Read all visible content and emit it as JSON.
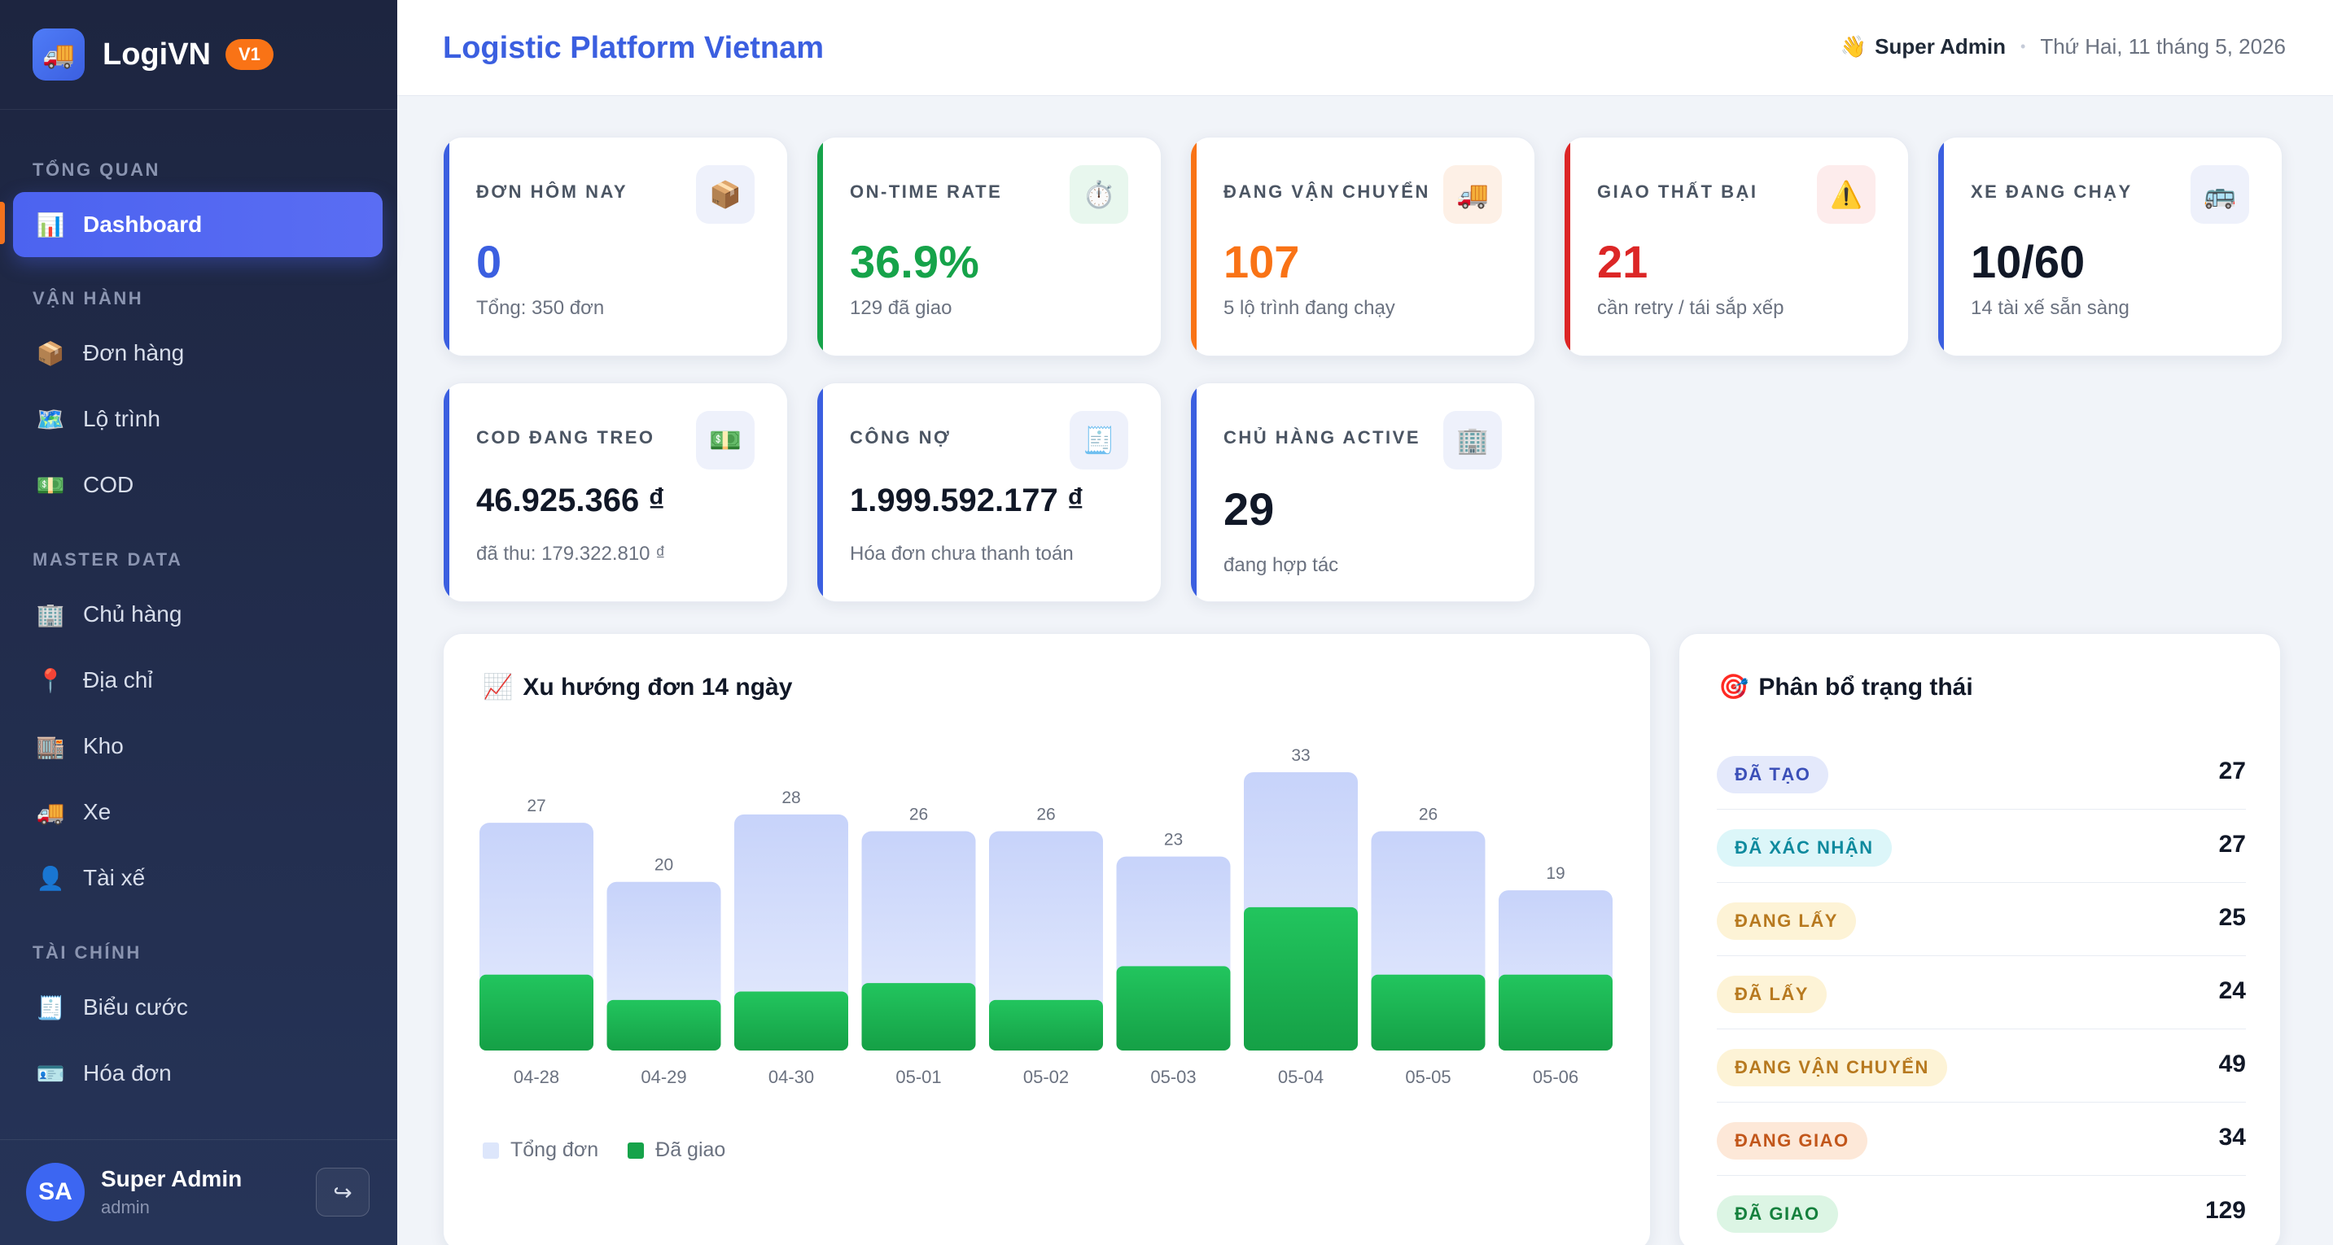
{
  "app": {
    "logo_icon": "truck-icon",
    "name": "LogiVN",
    "version": "V1"
  },
  "sidebar": {
    "sections": [
      {
        "title": "TỔNG QUAN",
        "items": [
          {
            "label": "Dashboard",
            "icon": "bar-chart-icon",
            "glyph": "📊",
            "active": true
          }
        ]
      },
      {
        "title": "VẬN HÀNH",
        "items": [
          {
            "label": "Đơn hàng",
            "icon": "package-icon",
            "glyph": "📦"
          },
          {
            "label": "Lộ trình",
            "icon": "map-icon",
            "glyph": "🗺️"
          },
          {
            "label": "COD",
            "icon": "cash-icon",
            "glyph": "💵"
          }
        ]
      },
      {
        "title": "MASTER DATA",
        "items": [
          {
            "label": "Chủ hàng",
            "icon": "building-icon",
            "glyph": "🏢"
          },
          {
            "label": "Địa chỉ",
            "icon": "pin-icon",
            "glyph": "📍"
          },
          {
            "label": "Kho",
            "icon": "warehouse-icon",
            "glyph": "🏬"
          },
          {
            "label": "Xe",
            "icon": "truck-icon",
            "glyph": "🚚"
          },
          {
            "label": "Tài xế",
            "icon": "person-icon",
            "glyph": "👤"
          }
        ]
      },
      {
        "title": "TÀI CHÍNH",
        "items": [
          {
            "label": "Biểu cước",
            "icon": "receipt-icon",
            "glyph": "🧾"
          },
          {
            "label": "Hóa đơn",
            "icon": "id-card-icon",
            "glyph": "🪪"
          }
        ]
      }
    ],
    "user": {
      "initials": "SA",
      "name": "Super Admin",
      "role": "admin",
      "logout_icon": "logout-icon",
      "logout_glyph": "↪"
    }
  },
  "header": {
    "title": "Logistic Platform Vietnam",
    "user_icon": "wave-icon",
    "user_glyph": "👋",
    "user_name": "Super Admin",
    "separator": "•",
    "date": "Thứ Hai, 11 tháng 5, 2026"
  },
  "stats": [
    {
      "label": "ĐƠN HÔM NAY",
      "value": "0",
      "sub": "Tổng: 350 đơn",
      "accent": "#3b5fe0",
      "value_color": "#3b5fe0",
      "icon": "package-icon",
      "glyph": "📦",
      "icon_bg": "#eef1fb"
    },
    {
      "label": "ON-TIME RATE",
      "value": "36.9%",
      "sub": "129 đã giao",
      "accent": "#16a34a",
      "value_color": "#16a34a",
      "icon": "stopwatch-icon",
      "glyph": "⏱️",
      "icon_bg": "#e8f7ee"
    },
    {
      "label": "ĐANG VẬN CHUYỂN",
      "value": "107",
      "sub": "5 lộ trình đang chạy",
      "accent": "#f97316",
      "value_color": "#f97316",
      "icon": "truck-icon",
      "glyph": "🚚",
      "icon_bg": "#fdf0e6"
    },
    {
      "label": "GIAO THẤT BẠI",
      "value": "21",
      "sub": "cần retry / tái sắp xếp",
      "accent": "#dc2626",
      "value_color": "#dc2626",
      "icon": "warning-icon",
      "glyph": "⚠️",
      "icon_bg": "#fdecec"
    },
    {
      "label": "XE ĐANG CHẠY",
      "value": "10/60",
      "sub": "14 tài xế sẵn sàng",
      "accent": "#3b5fe0",
      "value_color": "#111827",
      "icon": "bus-icon",
      "glyph": "🚌",
      "icon_bg": "#eef1fb"
    },
    {
      "label": "COD ĐANG TREO",
      "value": "46.925.366 ₫",
      "sub": "đã thu: 179.322.810 ₫",
      "accent": "#3b5fe0",
      "value_color": "#111827",
      "icon": "cash-icon",
      "glyph": "💵",
      "icon_bg": "#eef1fb"
    },
    {
      "label": "CÔNG NỢ",
      "value": "1.999.592.177 ₫",
      "sub": "Hóa đơn chưa thanh toán",
      "accent": "#3b5fe0",
      "value_color": "#111827",
      "icon": "receipt-icon",
      "glyph": "🧾",
      "icon_bg": "#eef1fb"
    },
    {
      "label": "CHỦ HÀNG ACTIVE",
      "value": "29",
      "sub": "đang hợp tác",
      "accent": "#3b5fe0",
      "value_color": "#111827",
      "icon": "building-icon",
      "glyph": "🏢",
      "icon_bg": "#eef1fb"
    }
  ],
  "trend": {
    "title": "Xu hướng đơn 14 ngày",
    "icon": "trend-icon",
    "glyph": "📈"
  },
  "chart_data": {
    "type": "bar",
    "categories": [
      "04-28",
      "04-29",
      "04-30",
      "05-01",
      "05-02",
      "05-03",
      "05-04",
      "05-05",
      "05-06"
    ],
    "series": [
      {
        "name": "Tổng đơn",
        "values": [
          27,
          20,
          28,
          26,
          26,
          23,
          33,
          26,
          19
        ],
        "color": "#cdd8fa"
      },
      {
        "name": "Đã giao",
        "values": [
          9,
          6,
          7,
          8,
          6,
          10,
          17,
          9,
          9
        ],
        "color": "#16a34a"
      }
    ],
    "ylim": [
      0,
      33
    ],
    "grid": false,
    "legend": "bottom-left",
    "data_labels": "Tổng đơn"
  },
  "status_panel": {
    "title": "Phân bổ trạng thái",
    "icon": "target-icon",
    "glyph": "🎯",
    "items": [
      {
        "label": "ĐÃ TẠO",
        "count": "27",
        "fg": "#3b4fb8",
        "bg": "#e4e9fb"
      },
      {
        "label": "ĐÃ XÁC NHẬN",
        "count": "27",
        "fg": "#0e8a9e",
        "bg": "#dcf6f9"
      },
      {
        "label": "ĐANG LẤY",
        "count": "25",
        "fg": "#b7791f",
        "bg": "#fdf3d6"
      },
      {
        "label": "ĐÃ LẤY",
        "count": "24",
        "fg": "#b7791f",
        "bg": "#fdf3d6"
      },
      {
        "label": "ĐANG VẬN CHUYỂN",
        "count": "49",
        "fg": "#b7791f",
        "bg": "#fdf3d6"
      },
      {
        "label": "ĐANG GIAO",
        "count": "34",
        "fg": "#c2561a",
        "bg": "#fde8d8"
      },
      {
        "label": "ĐÃ GIAO",
        "count": "129",
        "fg": "#15803d",
        "bg": "#dcf5e4"
      }
    ]
  }
}
